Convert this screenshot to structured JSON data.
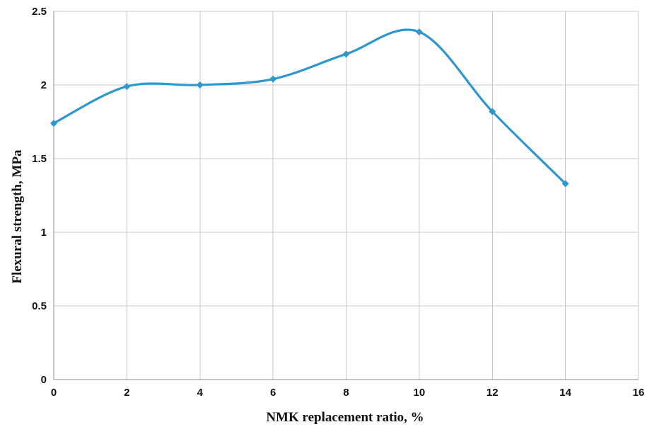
{
  "chart_data": {
    "type": "line",
    "title": "",
    "xlabel": "NMK replacement ratio, %",
    "ylabel": "Flexural strength, MPa",
    "xlim": [
      0,
      16
    ],
    "ylim": [
      0,
      2.5
    ],
    "x_ticks": [
      0,
      2,
      4,
      6,
      8,
      10,
      12,
      14,
      16
    ],
    "y_ticks": [
      0,
      0.5,
      1,
      1.5,
      2,
      2.5
    ],
    "x_tick_labels": [
      "0",
      "2",
      "4",
      "6",
      "8",
      "10",
      "12",
      "14",
      "16"
    ],
    "y_tick_labels": [
      "0",
      "0.5",
      "1",
      "1.5",
      "2",
      "2.5"
    ],
    "grid": true,
    "smooth": true,
    "legend": "none",
    "series": [
      {
        "color": "#2e97cc",
        "x": [
          0,
          2,
          4,
          6,
          8,
          10,
          12,
          14
        ],
        "y": [
          1.74,
          1.99,
          2.0,
          2.04,
          2.21,
          2.36,
          1.82,
          1.33
        ]
      }
    ]
  }
}
